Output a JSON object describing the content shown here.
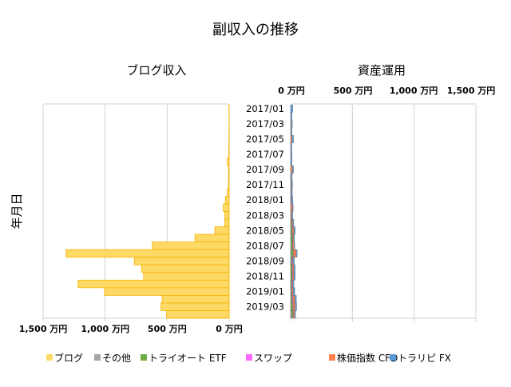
{
  "chart_data": {
    "type": "bar",
    "orientation": "horizontal",
    "title": "副収入の推移",
    "ylabel": "年月日",
    "categories": [
      "2017/01",
      "2017/02",
      "2017/03",
      "2017/04",
      "2017/05",
      "2017/06",
      "2017/07",
      "2017/08",
      "2017/09",
      "2017/10",
      "2017/11",
      "2017/12",
      "2018/01",
      "2018/02",
      "2018/03",
      "2018/04",
      "2018/05",
      "2018/06",
      "2018/07",
      "2018/08",
      "2018/09",
      "2018/10",
      "2018/11",
      "2018/12",
      "2019/01",
      "2019/02",
      "2019/03",
      "2019/04"
    ],
    "category_labels_shown": [
      "2017/01",
      "2017/03",
      "2017/05",
      "2017/07",
      "2017/09",
      "2017/11",
      "2018/01",
      "2018/03",
      "2018/05",
      "2018/07",
      "2018/09",
      "2018/11",
      "2019/01",
      "2019/03"
    ],
    "grid": true,
    "legend": "bottom",
    "panels": [
      {
        "subtitle": "ブログ収入",
        "direction": "reversed",
        "xlim": [
          0,
          1500
        ],
        "tick_labels": [
          "1,500 万円",
          "1,000 万円",
          "500 万円",
          "0 万円"
        ],
        "tick_values": [
          1500,
          1000,
          500,
          0
        ],
        "series": [
          {
            "name": "ブログ",
            "color": "#ffd966",
            "border": "#f2b300",
            "values": [
              2,
              1,
              1,
              2,
              2,
              3,
              4,
              15,
              4,
              5,
              6,
              15,
              30,
              47,
              35,
              35,
              115,
              275,
              620,
              1315,
              765,
              705,
              690,
              1218,
              1005,
              540,
              550,
              505
            ]
          }
        ]
      },
      {
        "subtitle": "資産運用",
        "stacked": true,
        "xlim": [
          0,
          1500
        ],
        "tick_labels": [
          "0 万円",
          "500 万円",
          "1,000 万円",
          "1,500 万円"
        ],
        "tick_values": [
          0,
          500,
          1000,
          1500
        ],
        "series": [
          {
            "name": "その他",
            "color": "#a5a5a5",
            "values": [
              0,
              0,
              0,
              0,
              0,
              0,
              0,
              0,
              0,
              0,
              0,
              0,
              0,
              0,
              0,
              2,
              3,
              3,
              5,
              5,
              3,
              3,
              3,
              2,
              5,
              5,
              5,
              5
            ]
          },
          {
            "name": "トライオート ETF",
            "color": "#70ad47",
            "values": [
              0,
              0,
              0,
              0,
              0,
              0,
              0,
              0,
              0,
              0,
              0,
              0,
              0,
              0,
              0,
              5,
              8,
              12,
              10,
              15,
              5,
              8,
              10,
              5,
              5,
              10,
              12,
              12
            ]
          },
          {
            "name": "スワップ",
            "color": "#ff66ff",
            "values": [
              0,
              0,
              0,
              0,
              0,
              0,
              0,
              0,
              2,
              2,
              3,
              3,
              2,
              3,
              3,
              3,
              3,
              3,
              3,
              3,
              5,
              5,
              5,
              5,
              3,
              5,
              5,
              5
            ]
          },
          {
            "name": "株価指数 CFD",
            "color": "#ff7f50",
            "values": [
              0,
              2,
              4,
              3,
              10,
              2,
              3,
              2,
              12,
              3,
              5,
              3,
              4,
              12,
              6,
              8,
              12,
              6,
              10,
              20,
              6,
              10,
              8,
              6,
              8,
              15,
              15,
              10
            ]
          },
          {
            "name": "トラリピ FX",
            "color": "#5b9bd5",
            "values": [
              18,
              10,
              10,
              8,
              14,
              8,
              8,
              10,
              10,
              8,
              8,
              8,
              12,
              6,
              8,
              8,
              12,
              8,
              6,
              10,
              12,
              12,
              12,
              10,
              14,
              12,
              12,
              8
            ]
          }
        ]
      }
    ]
  }
}
